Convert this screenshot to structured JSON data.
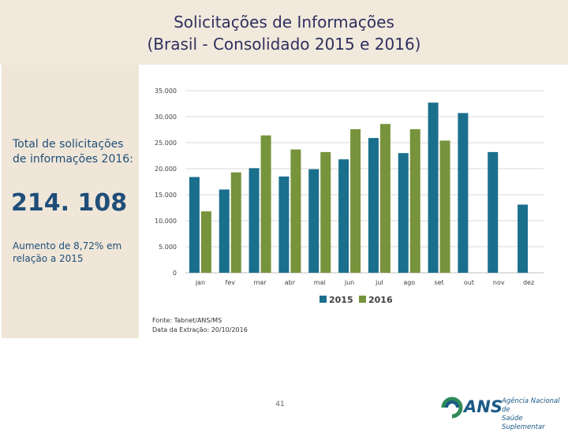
{
  "header": {
    "title_line1": "Solicitações de Informações",
    "title_line2": "(Brasil - Consolidado 2015 e 2016)"
  },
  "sidebar": {
    "label": "Total de solicitações de informações 2016:",
    "value": "214. 108",
    "note": "Aumento de 8,72% em relação a 2015"
  },
  "source": {
    "line1": "Fonte: Tabnet/ANS/MS",
    "line2": "Data da Extração: 20/10/2016"
  },
  "footer": {
    "page_number": "41",
    "logo_text": "ANS",
    "logo_line1": "Agência Nacional de",
    "logo_line2": "Saúde Suplementar"
  },
  "colors": {
    "series_2015": "#1a6f8c",
    "series_2016": "#77933c",
    "grid": "#d9d9d9",
    "tick_text": "#404040"
  },
  "chart_data": {
    "type": "bar",
    "title": "",
    "xlabel": "",
    "ylabel": "",
    "categories": [
      "jan",
      "fev",
      "mar",
      "abr",
      "mai",
      "jun",
      "jul",
      "ago",
      "set",
      "out",
      "nov",
      "dez"
    ],
    "series": [
      {
        "name": "2015",
        "values": [
          18400,
          16000,
          20100,
          18500,
          19900,
          21800,
          25900,
          23000,
          32700,
          30700,
          23200,
          13100
        ]
      },
      {
        "name": "2016",
        "values": [
          11800,
          19300,
          26400,
          23700,
          23200,
          27600,
          28600,
          27600,
          25400,
          null,
          null,
          null
        ]
      }
    ],
    "y_ticks": [
      "0",
      "5.000",
      "10.000",
      "15.000",
      "20.000",
      "25.000",
      "30.000",
      "35.000"
    ],
    "ylim": [
      0,
      35000
    ],
    "grid": true,
    "legend": "bottom"
  }
}
